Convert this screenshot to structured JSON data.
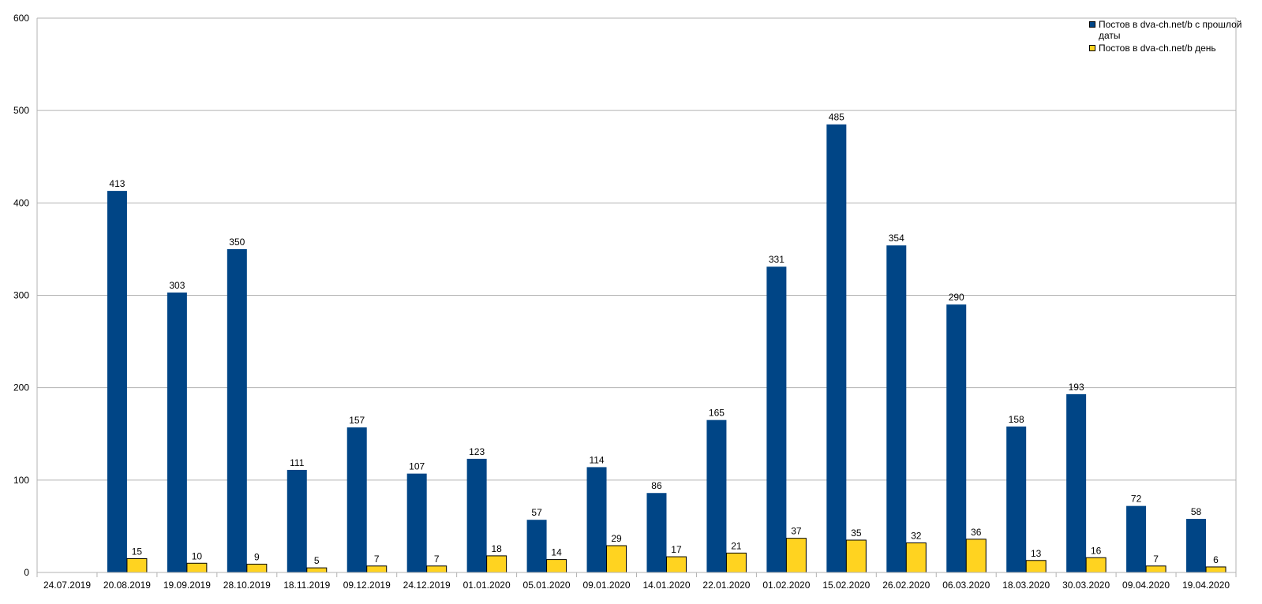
{
  "chart_data": {
    "type": "bar",
    "categories": [
      "24.07.2019",
      "20.08.2019",
      "19.09.2019",
      "28.10.2019",
      "18.11.2019",
      "09.12.2019",
      "24.12.2019",
      "01.01.2020",
      "05.01.2020",
      "09.01.2020",
      "14.01.2020",
      "22.01.2020",
      "01.02.2020",
      "15.02.2020",
      "26.02.2020",
      "06.03.2020",
      "18.03.2020",
      "30.03.2020",
      "09.04.2020",
      "19.04.2020"
    ],
    "series": [
      {
        "name": "Постов в dva-ch.net/b с прошлой даты",
        "color": "#004586",
        "values": [
          null,
          413,
          303,
          350,
          111,
          157,
          107,
          123,
          57,
          114,
          86,
          165,
          331,
          485,
          354,
          290,
          158,
          193,
          72,
          58
        ]
      },
      {
        "name": "Постов в dva-ch.net/b день",
        "color": "#ffd320",
        "values": [
          null,
          15,
          10,
          9,
          5,
          7,
          7,
          18,
          14,
          29,
          17,
          21,
          37,
          35,
          32,
          36,
          13,
          16,
          7,
          6
        ]
      }
    ],
    "ylim": [
      0,
      600
    ],
    "yticks": [
      0,
      100,
      200,
      300,
      400,
      500,
      600
    ],
    "grid": true,
    "legend_position": "top-right"
  }
}
